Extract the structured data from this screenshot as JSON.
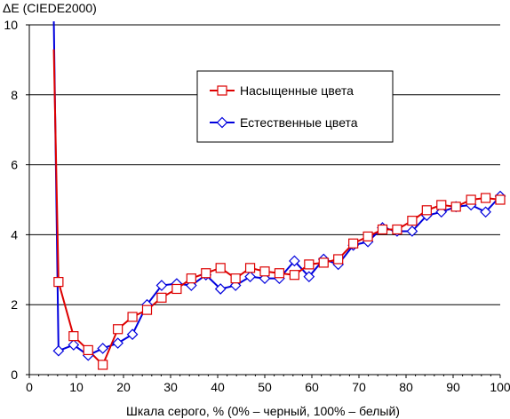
{
  "chart_data": {
    "type": "line",
    "ylabel": "ΔE (CIEDE2000)",
    "xlabel": "Шкала серого, % (0% – черный, 100% – белый)",
    "xlim": [
      0,
      100
    ],
    "ylim": [
      0,
      10
    ],
    "x_ticks": [
      0,
      10,
      20,
      30,
      40,
      50,
      60,
      70,
      80,
      90,
      100
    ],
    "y_ticks": [
      0,
      2,
      4,
      6,
      8,
      10
    ],
    "grid": "horizontal",
    "legend_position": "upper-middle-right",
    "series": [
      {
        "name": "Насыщенные цвета",
        "color": "#dd0000",
        "marker": "square",
        "x": [
          5.2,
          6.2,
          9.4,
          12.5,
          15.6,
          18.8,
          21.9,
          25.0,
          28.1,
          31.3,
          34.4,
          37.5,
          40.6,
          43.8,
          46.9,
          50.0,
          53.1,
          56.3,
          59.4,
          62.5,
          65.6,
          68.8,
          71.9,
          75.0,
          78.1,
          81.3,
          84.4,
          87.5,
          90.6,
          93.8,
          96.9,
          100.0
        ],
        "y": [
          9.3,
          2.65,
          1.1,
          0.7,
          0.28,
          1.3,
          1.65,
          1.85,
          2.2,
          2.45,
          2.75,
          2.9,
          3.05,
          2.75,
          3.05,
          2.95,
          2.9,
          2.85,
          3.15,
          3.2,
          3.3,
          3.75,
          3.95,
          4.15,
          4.15,
          4.4,
          4.7,
          4.85,
          4.8,
          5.0,
          5.05,
          5.0
        ]
      },
      {
        "name": "Естественные цвета",
        "color": "#0000dd",
        "marker": "diamond",
        "x": [
          5.2,
          6.2,
          9.4,
          12.5,
          15.6,
          18.8,
          21.9,
          25.0,
          28.1,
          31.3,
          34.4,
          37.5,
          40.6,
          43.8,
          46.9,
          50.0,
          53.1,
          56.3,
          59.4,
          62.5,
          65.6,
          68.8,
          71.9,
          75.0,
          78.1,
          81.3,
          84.4,
          87.5,
          90.6,
          93.8,
          96.9,
          100.0
        ],
        "y": [
          10.1,
          0.68,
          0.85,
          0.55,
          0.75,
          0.9,
          1.15,
          2.0,
          2.55,
          2.6,
          2.55,
          2.85,
          2.45,
          2.55,
          2.8,
          2.75,
          2.75,
          3.25,
          2.8,
          3.3,
          3.15,
          3.7,
          3.8,
          4.2,
          4.1,
          4.1,
          4.55,
          4.65,
          4.8,
          4.85,
          4.65,
          5.1
        ]
      }
    ]
  }
}
